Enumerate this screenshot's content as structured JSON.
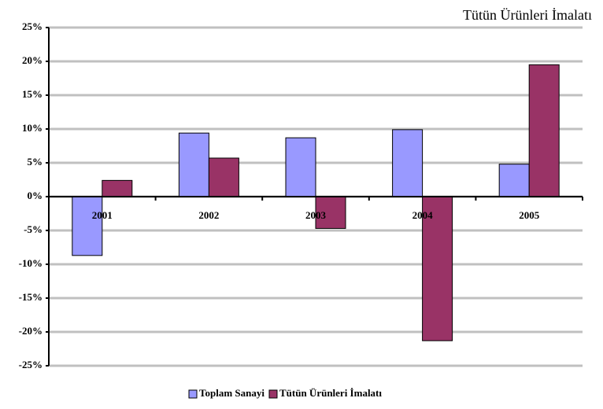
{
  "chart_data": {
    "type": "bar",
    "title": "Tütün Ürünleri İmalatı",
    "categories": [
      "2001",
      "2002",
      "2003",
      "2004",
      "2005"
    ],
    "series": [
      {
        "name": "Toplam Sanayi",
        "color": "#9999ff",
        "values": [
          -8.7,
          9.4,
          8.7,
          9.9,
          4.8
        ]
      },
      {
        "name": "Tütün Ürünleri İmalatı",
        "color": "#993366",
        "values": [
          2.4,
          5.7,
          -4.7,
          -21.3,
          19.5
        ]
      }
    ],
    "ylim": [
      -25,
      25
    ],
    "yticks": [
      {
        "value": -25,
        "label": "-25%"
      },
      {
        "value": -20,
        "label": "-20%"
      },
      {
        "value": -15,
        "label": "-15%"
      },
      {
        "value": -10,
        "label": "-10%"
      },
      {
        "value": -5,
        "label": "-5%"
      },
      {
        "value": 0,
        "label": "0%"
      },
      {
        "value": 5,
        "label": "5%"
      },
      {
        "value": 10,
        "label": "10%"
      },
      {
        "value": 15,
        "label": "15%"
      },
      {
        "value": 20,
        "label": "20%"
      },
      {
        "value": 25,
        "label": "25%"
      }
    ],
    "grid": true,
    "legend": "bottom"
  }
}
